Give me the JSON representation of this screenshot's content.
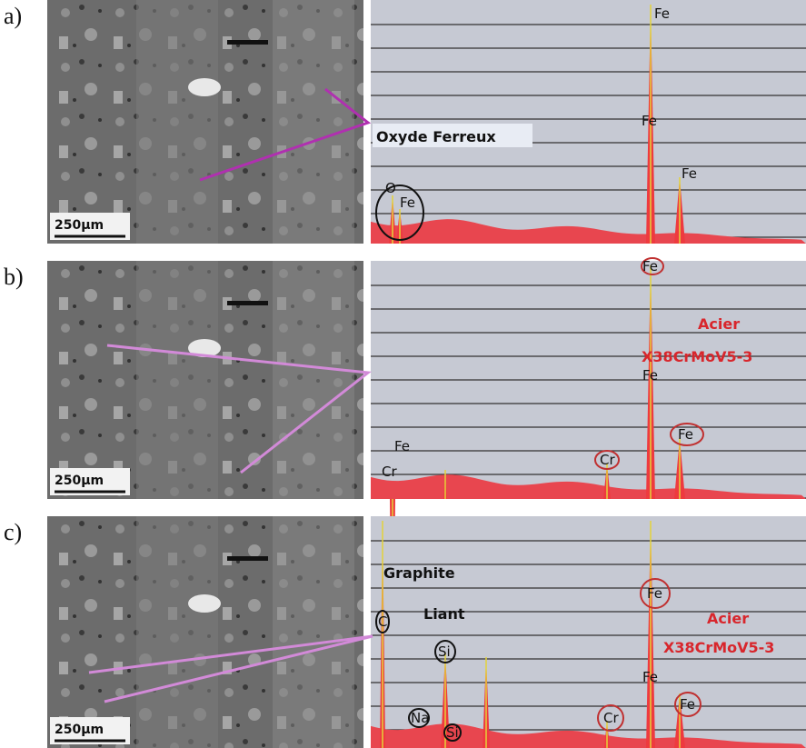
{
  "panels": [
    {
      "label": "a)",
      "scale_bar": "250µm",
      "callout": "Oxyde Ferreux",
      "peaks": {
        "fe_top": "Fe",
        "fe_mid": "Fe",
        "fe_right": "Fe",
        "o": "O",
        "fe_low": "Fe"
      }
    },
    {
      "label": "b)",
      "scale_bar": "250µm",
      "material": "Acier",
      "grade": "X38CrMoV5-3",
      "peaks": {
        "fe_top": "Fe",
        "fe_mid": "Fe",
        "fe_right": "Fe",
        "cr_mid": "Cr",
        "fe_low": "Fe",
        "cr_low": "Cr"
      }
    },
    {
      "label": "c)",
      "scale_bar": "250µm",
      "graphite": "Graphite",
      "liant": "Liant",
      "material": "Acier",
      "grade": "X38CrMoV5-3",
      "peaks": {
        "c": "C",
        "si_top": "Si",
        "na": "Na",
        "si_low": "Si",
        "fe_top": "Fe",
        "fe_mid": "Fe",
        "cr": "Cr",
        "fe_right": "Fe"
      }
    }
  ]
}
